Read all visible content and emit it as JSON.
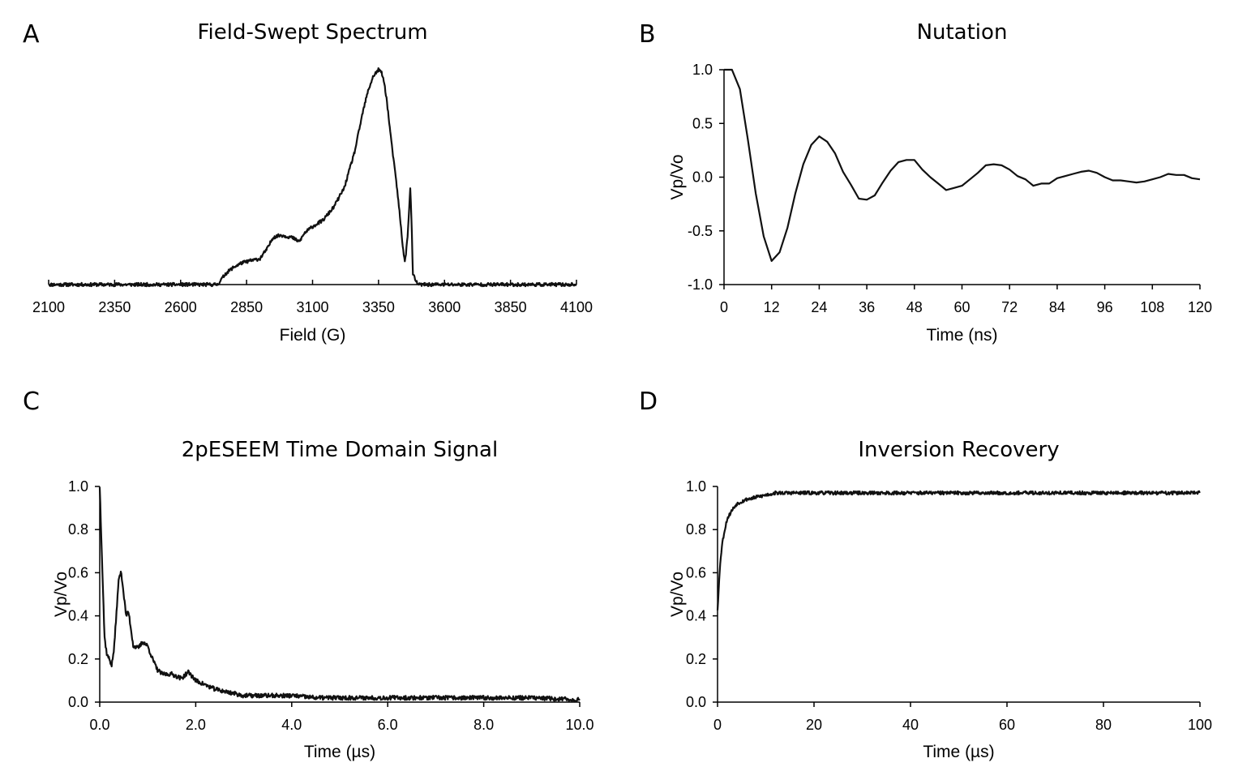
{
  "chart_data": [
    {
      "panel": "A",
      "type": "line",
      "title": "Field-Swept Spectrum",
      "xlabel": "Field (G)",
      "ylabel": "",
      "xlim": [
        2100,
        4100
      ],
      "ylim": [
        0,
        1
      ],
      "show_y_axis": false,
      "x_ticks": [
        "2100",
        "2350",
        "2600",
        "2850",
        "3100",
        "3350",
        "3600",
        "3850",
        "4100"
      ],
      "x_tick_values": [
        2100,
        2350,
        2600,
        2850,
        3100,
        3350,
        3600,
        3850,
        4100
      ],
      "y_ticks": [],
      "y_tick_values": [],
      "noise": 0.008,
      "series": [
        {
          "x": [
            2100,
            2300,
            2500,
            2740,
            2770,
            2800,
            2830,
            2860,
            2900,
            2930,
            2950,
            2980,
            3020,
            3050,
            3070,
            3100,
            3140,
            3180,
            3220,
            3260,
            3290,
            3310,
            3330,
            3350,
            3360,
            3370,
            3380,
            3400,
            3420,
            3430,
            3440,
            3450,
            3460,
            3470,
            3475,
            3480,
            3490,
            3500,
            3520,
            3600,
            3800,
            4100
          ],
          "values": [
            0.0,
            0.0,
            0.0,
            0.0,
            0.05,
            0.08,
            0.1,
            0.11,
            0.12,
            0.17,
            0.22,
            0.23,
            0.22,
            0.2,
            0.24,
            0.27,
            0.3,
            0.36,
            0.45,
            0.62,
            0.8,
            0.9,
            0.97,
            1.0,
            0.99,
            0.95,
            0.87,
            0.65,
            0.45,
            0.33,
            0.2,
            0.1,
            0.22,
            0.45,
            0.3,
            0.05,
            0.02,
            0.0,
            0.0,
            0.0,
            0.0,
            0.0
          ]
        }
      ]
    },
    {
      "panel": "B",
      "type": "line",
      "title": "Nutation",
      "xlabel": "Time (ns)",
      "ylabel": "Vp/Vo",
      "xlim": [
        0,
        120
      ],
      "ylim": [
        -1.0,
        1.0
      ],
      "show_y_axis": true,
      "x_ticks": [
        "0",
        "12",
        "24",
        "36",
        "48",
        "60",
        "72",
        "84",
        "96",
        "108",
        "120"
      ],
      "x_tick_values": [
        0,
        12,
        24,
        36,
        48,
        60,
        72,
        84,
        96,
        108,
        120
      ],
      "y_ticks": [
        "-1.0",
        "-0.5",
        "0.0",
        "0.5",
        "1.0"
      ],
      "y_tick_values": [
        -1.0,
        -0.5,
        0.0,
        0.5,
        1.0
      ],
      "noise": 0,
      "series": [
        {
          "x": [
            0,
            2,
            4,
            6,
            8,
            10,
            12,
            14,
            16,
            18,
            20,
            22,
            24,
            26,
            28,
            30,
            32,
            34,
            36,
            38,
            40,
            42,
            44,
            46,
            48,
            50,
            52,
            54,
            56,
            58,
            60,
            62,
            64,
            66,
            68,
            70,
            72,
            74,
            76,
            78,
            80,
            82,
            84,
            86,
            88,
            90,
            92,
            94,
            96,
            98,
            100,
            102,
            104,
            106,
            108,
            110,
            112,
            114,
            116,
            118,
            120
          ],
          "values": [
            1.0,
            1.0,
            0.82,
            0.35,
            -0.15,
            -0.55,
            -0.78,
            -0.7,
            -0.47,
            -0.15,
            0.12,
            0.3,
            0.38,
            0.33,
            0.22,
            0.05,
            -0.07,
            -0.2,
            -0.21,
            -0.17,
            -0.05,
            0.06,
            0.14,
            0.16,
            0.16,
            0.07,
            0.0,
            -0.06,
            -0.12,
            -0.1,
            -0.08,
            -0.02,
            0.04,
            0.11,
            0.12,
            0.11,
            0.07,
            0.01,
            -0.02,
            -0.08,
            -0.06,
            -0.06,
            -0.01,
            0.01,
            0.03,
            0.05,
            0.06,
            0.04,
            0.0,
            -0.03,
            -0.03,
            -0.04,
            -0.05,
            -0.04,
            -0.02,
            0.0,
            0.03,
            0.02,
            0.02,
            -0.01,
            -0.02
          ]
        }
      ]
    },
    {
      "panel": "C",
      "type": "line",
      "title": "2pESEEM Time Domain Signal",
      "xlabel": "Time (µs)",
      "ylabel": "Vp/Vo",
      "xlim": [
        0,
        10
      ],
      "ylim": [
        0,
        1
      ],
      "show_y_axis": true,
      "x_ticks": [
        "0.0",
        "2.0",
        "4.0",
        "6.0",
        "8.0",
        "10.0"
      ],
      "x_tick_values": [
        0,
        2,
        4,
        6,
        8,
        10
      ],
      "y_ticks": [
        "0.0",
        "0.2",
        "0.4",
        "0.6",
        "0.8",
        "1.0"
      ],
      "y_tick_values": [
        0,
        0.2,
        0.4,
        0.6,
        0.8,
        1.0
      ],
      "noise": 0.01,
      "series": [
        {
          "x": [
            0.0,
            0.05,
            0.1,
            0.15,
            0.2,
            0.25,
            0.3,
            0.35,
            0.4,
            0.45,
            0.5,
            0.55,
            0.6,
            0.65,
            0.7,
            0.8,
            0.9,
            1.0,
            1.1,
            1.2,
            1.3,
            1.5,
            1.7,
            1.85,
            2.0,
            2.2,
            2.4,
            2.6,
            2.8,
            3.0,
            3.5,
            4.0,
            4.5,
            5.0,
            6.0,
            7.0,
            8.0,
            9.0,
            10.0
          ],
          "values": [
            1.0,
            0.65,
            0.3,
            0.22,
            0.2,
            0.17,
            0.25,
            0.42,
            0.58,
            0.6,
            0.5,
            0.4,
            0.42,
            0.34,
            0.26,
            0.25,
            0.28,
            0.26,
            0.2,
            0.15,
            0.13,
            0.13,
            0.11,
            0.14,
            0.1,
            0.08,
            0.06,
            0.05,
            0.04,
            0.03,
            0.03,
            0.03,
            0.02,
            0.02,
            0.02,
            0.02,
            0.02,
            0.02,
            0.01
          ]
        }
      ]
    },
    {
      "panel": "D",
      "type": "line",
      "title": "Inversion Recovery",
      "xlabel": "Time (µs)",
      "ylabel": "Vp/Vo",
      "xlim": [
        0,
        100
      ],
      "ylim": [
        0,
        1
      ],
      "show_y_axis": true,
      "x_ticks": [
        "0",
        "20",
        "40",
        "60",
        "80",
        "100"
      ],
      "x_tick_values": [
        0,
        20,
        40,
        60,
        80,
        100
      ],
      "y_ticks": [
        "0.0",
        "0.2",
        "0.4",
        "0.6",
        "0.8",
        "1.0"
      ],
      "y_tick_values": [
        0,
        0.2,
        0.4,
        0.6,
        0.8,
        1.0
      ],
      "noise": 0.008,
      "series": [
        {
          "x": [
            0,
            0.3,
            0.6,
            1,
            1.5,
            2,
            3,
            4,
            5,
            6,
            8,
            10,
            12,
            15,
            20,
            30,
            40,
            50,
            60,
            70,
            80,
            90,
            100
          ],
          "values": [
            0.43,
            0.55,
            0.66,
            0.74,
            0.8,
            0.85,
            0.89,
            0.92,
            0.93,
            0.94,
            0.95,
            0.96,
            0.97,
            0.97,
            0.97,
            0.97,
            0.97,
            0.97,
            0.97,
            0.97,
            0.97,
            0.97,
            0.97
          ]
        }
      ]
    }
  ]
}
